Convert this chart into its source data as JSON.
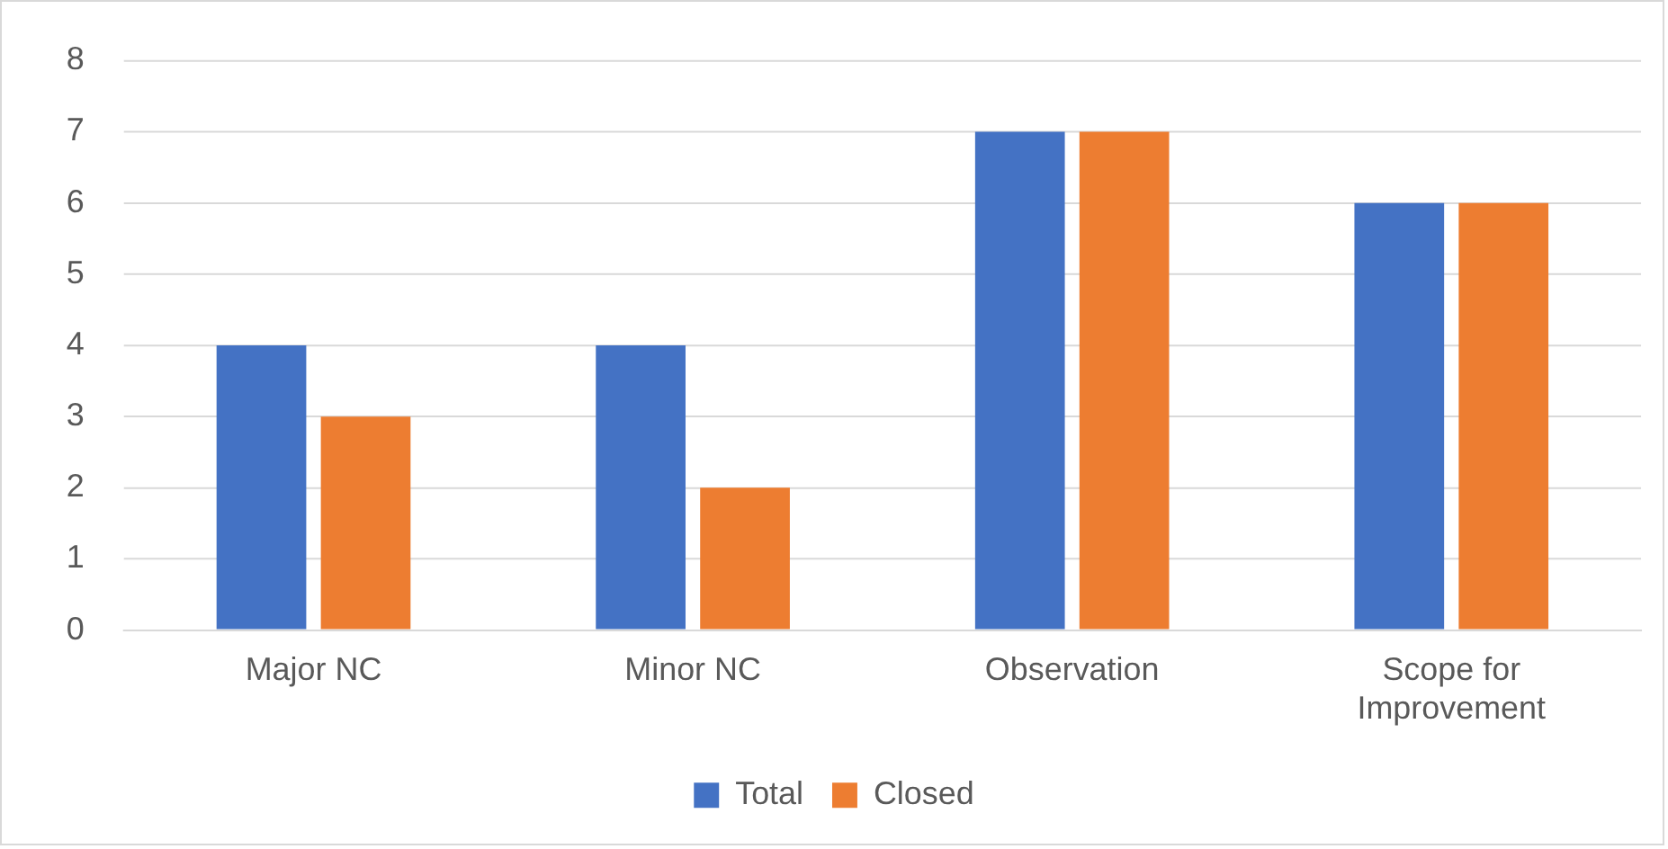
{
  "chart_data": {
    "type": "bar",
    "categories": [
      "Major NC",
      "Minor NC",
      "Observation",
      "Scope for Improvement"
    ],
    "series": [
      {
        "name": "Total",
        "color": "#4472c4",
        "values": [
          4,
          4,
          7,
          6
        ]
      },
      {
        "name": "Closed",
        "color": "#ed7d31",
        "values": [
          3,
          2,
          7,
          6
        ]
      }
    ],
    "ylim": [
      0,
      8
    ],
    "yticks": [
      0,
      1,
      2,
      3,
      4,
      5,
      6,
      7,
      8
    ],
    "grid": "y",
    "legend": "bottom"
  }
}
